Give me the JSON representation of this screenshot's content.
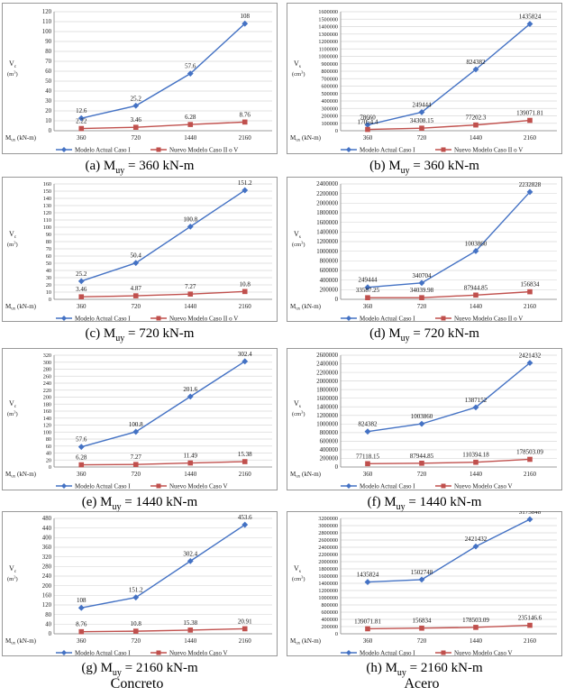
{
  "colors": {
    "blue": "#4472C4",
    "red": "#C0504D",
    "grid": "#d9d9d9",
    "border": "#7f7f7f"
  },
  "panels": [
    {
      "caption": {
        "label": "(a) M",
        "sub": "uy",
        "value": " = 360 kN-m"
      },
      "ylabel": [
        "V",
        "c",
        "(m",
        "3",
        ")"
      ],
      "xlabel": "Mux (kN-m)",
      "legend": [
        "Modelo Actual Caso I",
        "Nuevo Modelo Caso II o V"
      ],
      "chart_data": {
        "type": "line",
        "categories": [
          "360",
          "720",
          "1440",
          "2160"
        ],
        "ylim": [
          0,
          120
        ],
        "ystep": 10,
        "ytick_labels": [
          "0",
          "10",
          "20",
          "30",
          "40",
          "50",
          "60",
          "70",
          "80",
          "90",
          "100",
          "110",
          "120"
        ],
        "series": [
          {
            "name": "Modelo Actual Caso I",
            "values": [
              12.6,
              25.2,
              57.6,
              108
            ],
            "labels": [
              "12.6",
              "25.2",
              "57.6",
              "108"
            ]
          },
          {
            "name": "Nuevo Modelo Caso II o V",
            "values": [
              2.22,
              3.46,
              6.28,
              8.76
            ],
            "labels": [
              "2.22",
              "3.46",
              "6.28",
              "8.76"
            ]
          }
        ]
      }
    },
    {
      "caption": {
        "label": "(b) M",
        "sub": "uy",
        "value": " = 360 kN-m"
      },
      "ylabel": [
        "V",
        "s",
        "(cm",
        "3",
        ")"
      ],
      "xlabel": "Mux (kN-m)",
      "legend": [
        "Modelo Actual Caso I",
        "Nuevo Modelo Caso II o V"
      ],
      "chart_data": {
        "type": "line",
        "categories": [
          "360",
          "720",
          "1440",
          "2160"
        ],
        "ylim": [
          0,
          1600000
        ],
        "ystep": 100000,
        "ytick_labels": [
          "0",
          "100000",
          "200000",
          "300000",
          "400000",
          "500000",
          "600000",
          "700000",
          "800000",
          "900000",
          "1000000",
          "1100000",
          "1200000",
          "1300000",
          "1400000",
          "1500000",
          "1600000"
        ],
        "series": [
          {
            "name": "Modelo Actual Caso I",
            "values": [
              78660,
              249444,
              824382,
              1435824
            ],
            "labels": [
              "78660",
              "249444",
              "824382",
              "1435824"
            ]
          },
          {
            "name": "Nuevo Modelo Caso II o V",
            "values": [
              17054.4,
              34308.15,
              77202.3,
              139071.81
            ],
            "labels": [
              "17054.4",
              "34308.15",
              "77202.3",
              "139071.81"
            ]
          }
        ]
      }
    },
    {
      "caption": {
        "label": "(c) M",
        "sub": "uy",
        "value": " = 720 kN-m"
      },
      "ylabel": [
        "V",
        "c",
        "(m",
        "3",
        ")"
      ],
      "xlabel": "Mux (kN-m)",
      "legend": [
        "Modelo Actual Caso I",
        "Nuevo Modelo Caso II o V"
      ],
      "chart_data": {
        "type": "line",
        "categories": [
          "360",
          "720",
          "1440",
          "2160"
        ],
        "ylim": [
          0,
          160
        ],
        "ystep": 10,
        "ytick_labels": [
          "0",
          "10",
          "20",
          "30",
          "40",
          "50",
          "60",
          "70",
          "80",
          "90",
          "100",
          "110",
          "120",
          "130",
          "140",
          "150",
          "160"
        ],
        "series": [
          {
            "name": "Modelo Actual Caso I",
            "values": [
              25.2,
              50.4,
              100.8,
              151.2
            ],
            "labels": [
              "25.2",
              "50.4",
              "100.8",
              "151.2"
            ]
          },
          {
            "name": "Nuevo Modelo Caso II o V",
            "values": [
              3.46,
              4.87,
              7.27,
              10.8
            ],
            "labels": [
              "3.46",
              "4.87",
              "7.27",
              "10.8"
            ]
          }
        ]
      }
    },
    {
      "caption": {
        "label": "(d) M",
        "sub": "uy",
        "value": " = 720 kN-m"
      },
      "ylabel": [
        "V",
        "s",
        "(cm",
        "3",
        ")"
      ],
      "xlabel": "Mux (kN-m)",
      "legend": [
        "Modelo Actual Caso I",
        "Nuevo Modelo Caso II o V"
      ],
      "chart_data": {
        "type": "line",
        "categories": [
          "360",
          "720",
          "1440",
          "2160"
        ],
        "ylim": [
          0,
          2400000
        ],
        "ystep": 200000,
        "ytick_labels": [
          "0",
          "200000",
          "400000",
          "600000",
          "800000",
          "1000000",
          "1200000",
          "1400000",
          "1600000",
          "1800000",
          "2000000",
          "2200000",
          "2400000"
        ],
        "series": [
          {
            "name": "Modelo Actual Caso I",
            "values": [
              249444,
              340704,
              1003860,
              2232828
            ],
            "labels": [
              "249444",
              "340704",
              "1003860",
              "2232828"
            ]
          },
          {
            "name": "Nuevo Modelo Caso II o V",
            "values": [
              33587.25,
              34039.98,
              87944.85,
              156834
            ],
            "labels": [
              "33587.25",
              "34039.98",
              "87944.85",
              "156834"
            ]
          }
        ]
      }
    },
    {
      "caption": {
        "label": "(e) M",
        "sub": "uy",
        "value": " = 1440 kN-m"
      },
      "ylabel": [
        "V",
        "c",
        "(m",
        "3",
        ")"
      ],
      "xlabel": "Mux (kN-m)",
      "legend": [
        "Modelo Actual Caso I",
        "Nuevo Modelo Caso V"
      ],
      "chart_data": {
        "type": "line",
        "categories": [
          "360",
          "720",
          "1440",
          "2160"
        ],
        "ylim": [
          0,
          320
        ],
        "ystep": 20,
        "ytick_labels": [
          "0",
          "20",
          "40",
          "60",
          "80",
          "100",
          "120",
          "140",
          "160",
          "180",
          "200",
          "220",
          "240",
          "260",
          "280",
          "300",
          "320"
        ],
        "series": [
          {
            "name": "Modelo Actual Caso I",
            "values": [
              57.6,
              100.8,
              201.6,
              302.4
            ],
            "labels": [
              "57.6",
              "100.8",
              "201.6",
              "302.4"
            ]
          },
          {
            "name": "Nuevo Modelo Caso V",
            "values": [
              6.28,
              7.27,
              11.49,
              15.38
            ],
            "labels": [
              "6.28",
              "7.27",
              "11.49",
              "15.38"
            ]
          }
        ]
      }
    },
    {
      "caption": {
        "label": "(f) M",
        "sub": "uy",
        "value": " = 1440 kN-m"
      },
      "ylabel": [
        "V",
        "s",
        "(cm",
        "3",
        ")"
      ],
      "xlabel": "Mux (kN-m)",
      "legend": [
        "Modelo Actual Caso I",
        "Nuevo Modelo Caso V"
      ],
      "chart_data": {
        "type": "line",
        "categories": [
          "360",
          "720",
          "1440",
          "2160"
        ],
        "ylim": [
          0,
          2600000
        ],
        "ystep": 200000,
        "ytick_labels": [
          "0",
          "200000",
          "400000",
          "600000",
          "800000",
          "1000000",
          "1200000",
          "1400000",
          "1600000",
          "1800000",
          "2000000",
          "2200000",
          "2400000",
          "2600000"
        ],
        "series": [
          {
            "name": "Modelo Actual Caso I",
            "values": [
              824382,
              1003860,
              1387152,
              2421432
            ],
            "labels": [
              "824382",
              "1003860",
              "1387152",
              "2421432"
            ]
          },
          {
            "name": "Nuevo Modelo Caso V",
            "values": [
              77118.15,
              87944.85,
              110394.18,
              178503.09
            ],
            "labels": [
              "77118.15",
              "87944.85",
              "110394.18",
              "178503.09"
            ]
          }
        ]
      }
    },
    {
      "caption": {
        "label": "(g) M",
        "sub": "uy",
        "value": " = 2160 kN-m"
      },
      "ylabel": [
        "V",
        "c",
        "(m",
        "3",
        ")"
      ],
      "xlabel": "Mux (kN-m)",
      "legend": [
        "Modelo Actual Caso I",
        "Nuevo Modelo Caso V"
      ],
      "chart_data": {
        "type": "line",
        "categories": [
          "360",
          "720",
          "1440",
          "2160"
        ],
        "ylim": [
          0,
          480
        ],
        "ystep": 40,
        "ytick_labels": [
          "0",
          "40",
          "80",
          "120",
          "160",
          "200",
          "240",
          "280",
          "320",
          "360",
          "400",
          "440",
          "480"
        ],
        "series": [
          {
            "name": "Modelo Actual Caso I",
            "values": [
              108,
              151.2,
              302.4,
              453.6
            ],
            "labels": [
              "108",
              "151.2",
              "302.4",
              "453.6"
            ]
          },
          {
            "name": "Nuevo Modelo Caso V",
            "values": [
              8.76,
              10.8,
              15.38,
              20.91
            ],
            "labels": [
              "8.76",
              "10.8",
              "15.38",
              "20.91"
            ]
          }
        ]
      }
    },
    {
      "caption": {
        "label": "(h) M",
        "sub": "uy",
        "value": " = 2160 kN-m"
      },
      "ylabel": [
        "V",
        "s",
        "(cm",
        "3",
        ")"
      ],
      "xlabel": "Mux (kN-m)",
      "legend": [
        "Modelo Actual Caso I",
        "Nuevo Modelo Caso V"
      ],
      "chart_data": {
        "type": "line",
        "categories": [
          "360",
          "720",
          "1440",
          "2160"
        ],
        "ylim": [
          0,
          3200000
        ],
        "ystep": 200000,
        "ytick_labels": [
          "0",
          "200000",
          "400000",
          "600000",
          "800000",
          "1000000",
          "1200000",
          "1400000",
          "1600000",
          "1800000",
          "2000000",
          "2200000",
          "2400000",
          "2600000",
          "2800000",
          "3000000",
          "3200000"
        ],
        "series": [
          {
            "name": "Modelo Actual Caso I",
            "values": [
              1435824,
              1502748,
              2421432,
              3175848
            ],
            "labels": [
              "1435824",
              "1502748",
              "2421432",
              "3175848"
            ]
          },
          {
            "name": "Nuevo Modelo Caso V",
            "values": [
              139071.81,
              156834,
              178503.09,
              235146.6
            ],
            "labels": [
              "139071.81",
              "156834",
              "178503.09",
              "235146.6"
            ]
          }
        ]
      }
    }
  ],
  "footer": {
    "left": "Concreto",
    "right": "Acero"
  }
}
